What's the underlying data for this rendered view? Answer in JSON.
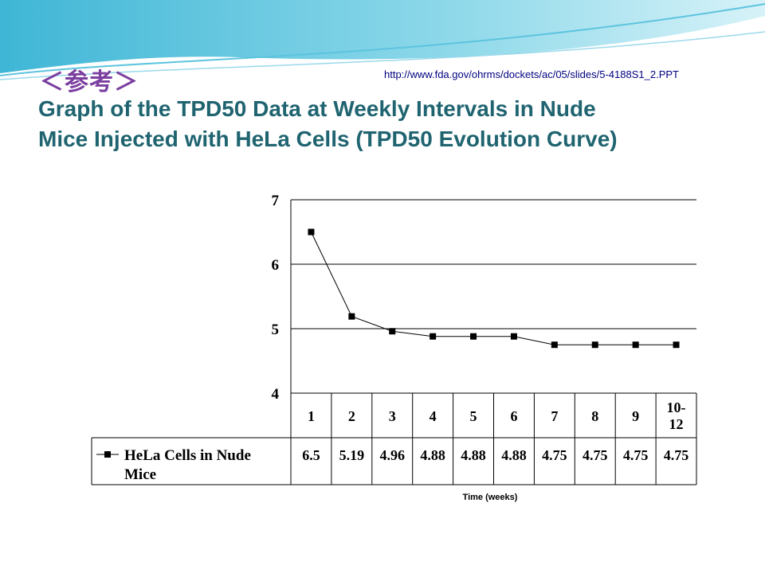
{
  "header": {
    "ref_label": "＜参考＞",
    "source_url": "http://www.fda.gov/ohrms/dockets/ac/05/slides/5-4188S1_2.PPT",
    "title_line1": "Graph of the TPD50 Data at Weekly Intervals in Nude",
    "title_line2": "Mice Injected with HeLa Cells (TPD50 Evolution Curve)"
  },
  "colors": {
    "title": "#1f6470",
    "ref_label": "#7b3fa0",
    "banner": "#4fc3dc",
    "line": "#000000"
  },
  "chart_data": {
    "type": "line",
    "title": "",
    "xlabel": "Time (weeks)",
    "ylabel": "",
    "ylim": [
      4,
      7
    ],
    "yticks": [
      "4",
      "5",
      "6",
      "7"
    ],
    "grid": true,
    "legend": "data-table-left",
    "categories": [
      "1",
      "2",
      "3",
      "4",
      "5",
      "6",
      "7",
      "8",
      "9",
      "10-\n12"
    ],
    "series": [
      {
        "name": "HeLa Cells in Nude Mice",
        "values": [
          6.5,
          5.19,
          4.96,
          4.88,
          4.88,
          4.88,
          4.75,
          4.75,
          4.75,
          4.75
        ],
        "value_labels": [
          "6.5",
          "5.19",
          "4.96",
          "4.88",
          "4.88",
          "4.88",
          "4.75",
          "4.75",
          "4.75",
          "4.75"
        ]
      }
    ]
  }
}
